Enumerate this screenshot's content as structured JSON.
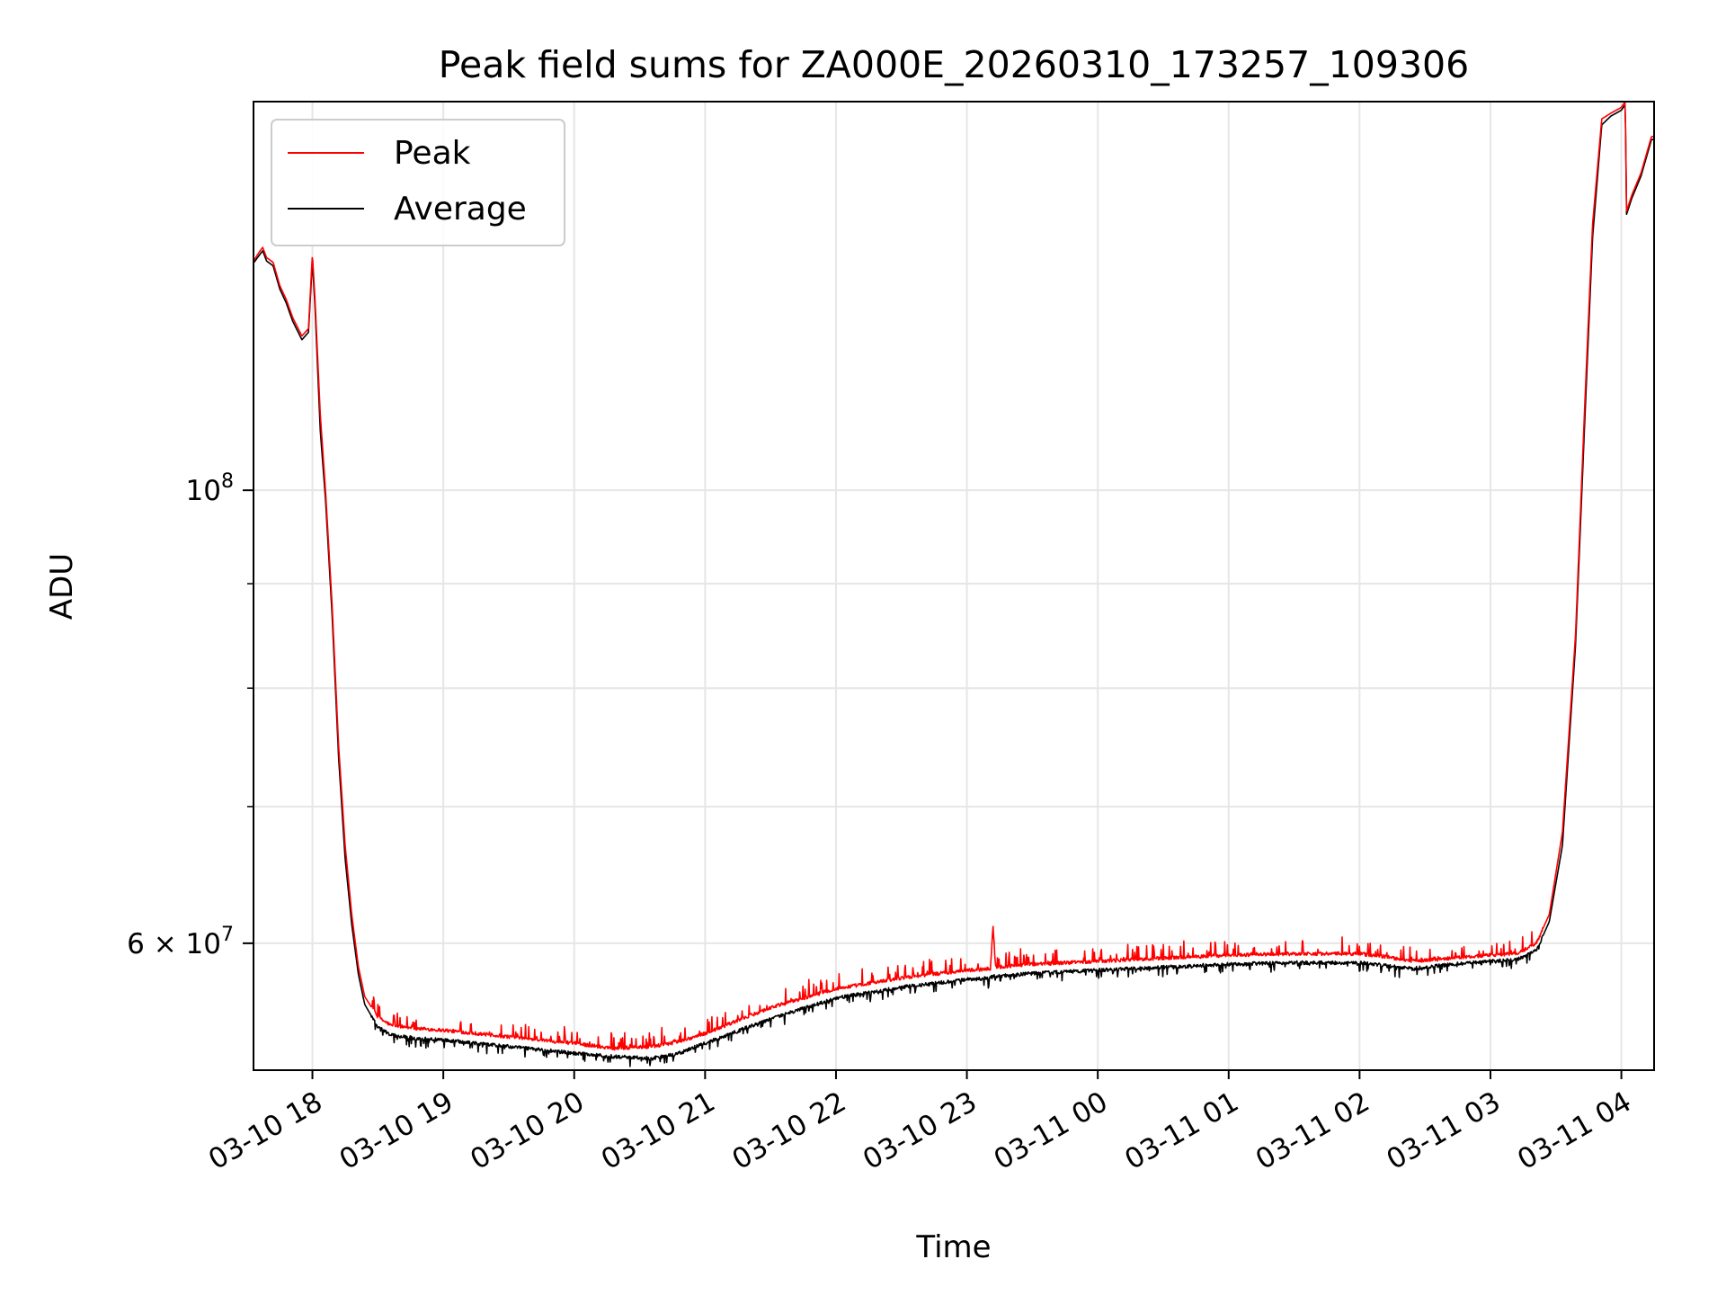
{
  "chart_data": {
    "type": "line",
    "title": "Peak field sums for ZA000E_20260310_173257_109306",
    "xlabel": "Time",
    "ylabel": "ADU",
    "yscale": "log",
    "ylim": [
      52000000,
      155000000
    ],
    "xlim_hours": [
      17.55,
      28.25
    ],
    "grid": true,
    "legend_position": "upper-left",
    "x_ticks": [
      {
        "hour": 18,
        "label": "03-10 18"
      },
      {
        "hour": 19,
        "label": "03-10 19"
      },
      {
        "hour": 20,
        "label": "03-10 20"
      },
      {
        "hour": 21,
        "label": "03-10 21"
      },
      {
        "hour": 22,
        "label": "03-10 22"
      },
      {
        "hour": 23,
        "label": "03-10 23"
      },
      {
        "hour": 24,
        "label": "03-11 00"
      },
      {
        "hour": 25,
        "label": "03-11 01"
      },
      {
        "hour": 26,
        "label": "03-11 02"
      },
      {
        "hour": 27,
        "label": "03-11 03"
      },
      {
        "hour": 28,
        "label": "03-11 04"
      }
    ],
    "y_major_ticks": [
      {
        "value": 100000000,
        "mantissa": "10",
        "exponent": "8"
      },
      {
        "value": 60000000,
        "mantissa": "6 × 10",
        "exponent": "7"
      }
    ],
    "y_minor_ticks": [
      70000000,
      80000000,
      90000000
    ],
    "series": [
      {
        "name": "Peak",
        "color": "#ff0000",
        "points": [
          [
            17.55,
            129500000
          ],
          [
            17.6,
            131000000
          ],
          [
            17.62,
            131500000
          ],
          [
            17.65,
            130000000
          ],
          [
            17.7,
            129300000
          ],
          [
            17.75,
            126000000
          ],
          [
            17.8,
            124000000
          ],
          [
            17.85,
            121500000
          ],
          [
            17.92,
            119000000
          ],
          [
            17.97,
            120000000
          ],
          [
            18.0,
            130500000
          ],
          [
            18.02,
            124000000
          ],
          [
            18.06,
            109000000
          ],
          [
            18.1,
            100000000
          ],
          [
            18.15,
            88000000
          ],
          [
            18.2,
            75000000
          ],
          [
            18.25,
            67000000
          ],
          [
            18.3,
            62000000
          ],
          [
            18.35,
            58500000
          ],
          [
            18.4,
            56500000
          ],
          [
            18.5,
            55200000
          ],
          [
            18.6,
            54700000
          ],
          [
            18.8,
            54500000
          ],
          [
            19.0,
            54400000
          ],
          [
            19.5,
            54000000
          ],
          [
            20.0,
            53600000
          ],
          [
            20.3,
            53300000
          ],
          [
            20.6,
            53400000
          ],
          [
            20.8,
            53700000
          ],
          [
            21.0,
            54200000
          ],
          [
            21.5,
            55800000
          ],
          [
            22.0,
            57000000
          ],
          [
            22.5,
            57700000
          ],
          [
            23.0,
            58200000
          ],
          [
            23.18,
            58300000
          ],
          [
            23.2,
            61200000
          ],
          [
            23.22,
            58400000
          ],
          [
            23.5,
            58600000
          ],
          [
            24.0,
            58800000
          ],
          [
            24.5,
            59000000
          ],
          [
            25.0,
            59200000
          ],
          [
            25.5,
            59300000
          ],
          [
            26.0,
            59300000
          ],
          [
            26.2,
            59100000
          ],
          [
            26.4,
            58800000
          ],
          [
            26.7,
            59000000
          ],
          [
            27.0,
            59200000
          ],
          [
            27.2,
            59300000
          ],
          [
            27.35,
            60000000
          ],
          [
            27.45,
            62000000
          ],
          [
            27.55,
            68000000
          ],
          [
            27.65,
            85000000
          ],
          [
            27.72,
            110000000
          ],
          [
            27.78,
            135000000
          ],
          [
            27.85,
            152000000
          ],
          [
            27.92,
            153000000
          ],
          [
            28.0,
            154000000
          ],
          [
            28.03,
            155000000
          ],
          [
            28.04,
            137000000
          ],
          [
            28.08,
            139500000
          ],
          [
            28.15,
            143000000
          ],
          [
            28.23,
            149000000
          ]
        ]
      },
      {
        "name": "Average",
        "color": "#000000",
        "points": [
          [
            17.55,
            129200000
          ],
          [
            17.6,
            130500000
          ],
          [
            17.62,
            131000000
          ],
          [
            17.65,
            129500000
          ],
          [
            17.7,
            128800000
          ],
          [
            17.75,
            125500000
          ],
          [
            17.8,
            123500000
          ],
          [
            17.85,
            121000000
          ],
          [
            17.92,
            118500000
          ],
          [
            17.97,
            119500000
          ],
          [
            18.0,
            129500000
          ],
          [
            18.02,
            123000000
          ],
          [
            18.06,
            107000000
          ],
          [
            18.1,
            99000000
          ],
          [
            18.15,
            87000000
          ],
          [
            18.2,
            74000000
          ],
          [
            18.25,
            66000000
          ],
          [
            18.3,
            61300000
          ],
          [
            18.35,
            58000000
          ],
          [
            18.4,
            56000000
          ],
          [
            18.5,
            54600000
          ],
          [
            18.6,
            54100000
          ],
          [
            18.8,
            53900000
          ],
          [
            19.0,
            53800000
          ],
          [
            19.5,
            53400000
          ],
          [
            20.0,
            53000000
          ],
          [
            20.3,
            52800000
          ],
          [
            20.6,
            52700000
          ],
          [
            20.8,
            53000000
          ],
          [
            21.0,
            53600000
          ],
          [
            21.5,
            55100000
          ],
          [
            22.0,
            56400000
          ],
          [
            22.5,
            57100000
          ],
          [
            23.0,
            57600000
          ],
          [
            23.18,
            57700000
          ],
          [
            23.2,
            57800000
          ],
          [
            23.22,
            57800000
          ],
          [
            23.5,
            58000000
          ],
          [
            24.0,
            58200000
          ],
          [
            24.5,
            58400000
          ],
          [
            25.0,
            58600000
          ],
          [
            25.5,
            58700000
          ],
          [
            26.0,
            58700000
          ],
          [
            26.2,
            58500000
          ],
          [
            26.4,
            58300000
          ],
          [
            26.7,
            58600000
          ],
          [
            27.0,
            58800000
          ],
          [
            27.2,
            58900000
          ],
          [
            27.35,
            59500000
          ],
          [
            27.45,
            61500000
          ],
          [
            27.55,
            67000000
          ],
          [
            27.65,
            84000000
          ],
          [
            27.72,
            108000000
          ],
          [
            27.78,
            133000000
          ],
          [
            27.85,
            151000000
          ],
          [
            27.92,
            152500000
          ],
          [
            28.0,
            153500000
          ],
          [
            28.03,
            154500000
          ],
          [
            28.04,
            136500000
          ],
          [
            28.08,
            139000000
          ],
          [
            28.15,
            142500000
          ],
          [
            28.23,
            148500000
          ]
        ]
      }
    ]
  }
}
